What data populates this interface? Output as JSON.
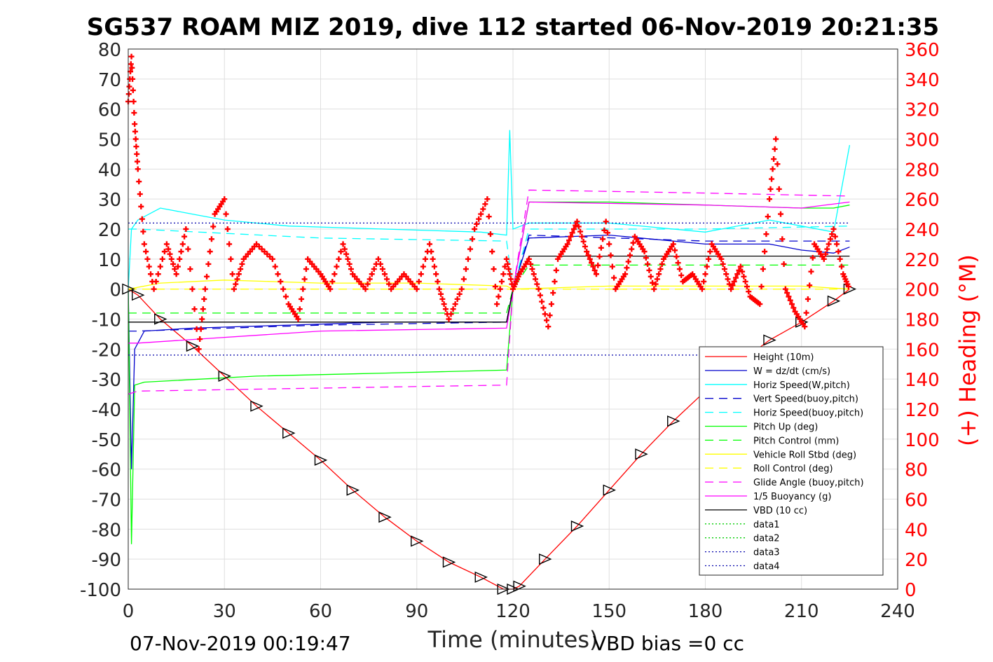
{
  "chart_data": {
    "type": "line",
    "title": "SG537 ROAM MIZ 2019, dive 112 started 06-Nov-2019 20:21:35",
    "xlabel": "Time (minutes)",
    "ylabel_right": "(+) Heading (°M)",
    "footer_left": "07-Nov-2019 00:19:47",
    "footer_right": "VBD bias =0 cc",
    "xlim": [
      0,
      240
    ],
    "ylim_left": [
      -100,
      80
    ],
    "ylim_right": [
      0,
      360
    ],
    "xticks": [
      "0",
      "30",
      "60",
      "90",
      "120",
      "150",
      "180",
      "210",
      "240"
    ],
    "yticks_left": [
      "80",
      "70",
      "60",
      "50",
      "40",
      "30",
      "20",
      "10",
      "0",
      "-10",
      "-20",
      "-30",
      "-40",
      "-50",
      "-60",
      "-70",
      "-80",
      "-90",
      "-100"
    ],
    "yticks_right": [
      "360",
      "340",
      "320",
      "300",
      "280",
      "260",
      "240",
      "220",
      "200",
      "180",
      "160",
      "140",
      "120",
      "100",
      "80",
      "60",
      "40",
      "20",
      "0"
    ],
    "grid": true,
    "legend_position": "lower-right",
    "colors": {
      "height": "#ff0000",
      "w": "#0000cc",
      "horiz_speed": "#00ffff",
      "pitch": "#00ff00",
      "roll": "#ffff00",
      "glide_angle": "#ff00ff",
      "buoyancy": "#ff00ff",
      "vbd": "#000000",
      "heading": "#ff0000",
      "data1": "#00cc00",
      "data2": "#00cc00",
      "data3": "#0000aa",
      "data4": "#0000aa"
    },
    "series": [
      {
        "name": "Height (10m)",
        "x": [
          0,
          3,
          10,
          20,
          30,
          40,
          50,
          60,
          70,
          80,
          90,
          100,
          110,
          117,
          120,
          122,
          130,
          140,
          150,
          160,
          170,
          180,
          190,
          200,
          210,
          220,
          225
        ],
        "y": [
          0,
          -2,
          -10,
          -19,
          -29,
          -39,
          -48,
          -57,
          -67,
          -76,
          -84,
          -91,
          -96,
          -100,
          -100,
          -99,
          -90,
          -79,
          -67,
          -55,
          -44,
          -34,
          -25,
          -17,
          -11,
          -4,
          0
        ]
      },
      {
        "name": "W = dz/dt (cm/s)",
        "x": [
          0,
          1,
          2,
          5,
          20,
          50,
          80,
          110,
          118,
          120,
          125,
          150,
          180,
          200,
          210,
          220,
          225
        ],
        "y": [
          0,
          -60,
          -20,
          -14,
          -13,
          -12,
          -11,
          -11,
          -11,
          0,
          17,
          18,
          15,
          15,
          13,
          12,
          14
        ]
      },
      {
        "name": "Horiz Speed(W,pitch)",
        "x": [
          0,
          1,
          3,
          10,
          20,
          30,
          50,
          80,
          110,
          118,
          119,
          120,
          125,
          150,
          180,
          200,
          210,
          220,
          225
        ],
        "y": [
          0,
          20,
          23,
          27,
          25,
          23,
          21,
          20,
          19,
          18,
          53,
          20,
          22,
          22,
          19,
          23,
          21,
          19,
          48
        ]
      },
      {
        "name": "Vert Speed(buoy,pitch)",
        "x": [
          0,
          3,
          60,
          118,
          120,
          125,
          180,
          225
        ],
        "y": [
          -14,
          -14,
          -12,
          -11,
          0,
          18,
          16,
          16
        ]
      },
      {
        "name": "Horiz Speed(buoy,pitch)",
        "x": [
          0,
          3,
          60,
          118,
          120,
          125,
          180,
          225
        ],
        "y": [
          20,
          20,
          17,
          16,
          0,
          20,
          20,
          21
        ]
      },
      {
        "name": "Pitch Up (deg)",
        "x": [
          0,
          1,
          2,
          5,
          40,
          80,
          118,
          120,
          125,
          150,
          180,
          210,
          220,
          225
        ],
        "y": [
          0,
          -85,
          -32,
          -31,
          -29,
          -28,
          -27,
          0,
          29,
          29,
          28,
          27,
          27,
          28
        ]
      },
      {
        "name": "Pitch Control (mm)",
        "x": [
          0,
          3,
          60,
          118,
          120,
          125,
          180,
          225
        ],
        "y": [
          -8,
          -8,
          -8,
          -8,
          0,
          8,
          8,
          8
        ]
      },
      {
        "name": "Vehicle Roll Stbd (deg)",
        "x": [
          0,
          10,
          30,
          60,
          90,
          118,
          120,
          150,
          180,
          210,
          225
        ],
        "y": [
          0,
          2,
          3,
          2,
          2,
          1,
          0,
          1,
          1,
          1,
          0
        ]
      },
      {
        "name": "Roll Control (deg)",
        "x": [
          0,
          225
        ],
        "y": [
          0,
          0
        ]
      },
      {
        "name": "Glide Angle (buoy,pitch)",
        "x": [
          0,
          3,
          60,
          118,
          120,
          125,
          180,
          225
        ],
        "y": [
          -35,
          -34,
          -33,
          -32,
          0,
          33,
          32,
          31
        ]
      },
      {
        "name": "1/5 Buoyancy (g)",
        "x": [
          0,
          3,
          60,
          118,
          120,
          125,
          180,
          210,
          225
        ],
        "y": [
          -18,
          -18,
          -14,
          -13,
          0,
          29,
          28,
          27,
          29
        ]
      },
      {
        "name": "VBD (10 cc)",
        "x": [
          0,
          3,
          60,
          118,
          120,
          125,
          180,
          225
        ],
        "y": [
          -11,
          -11,
          -11,
          -11,
          0,
          11,
          11,
          11
        ]
      },
      {
        "name": "data1",
        "x": [],
        "y": []
      },
      {
        "name": "data2",
        "x": [],
        "y": []
      },
      {
        "name": "data3",
        "x": [
          0,
          225
        ],
        "y": [
          22,
          22
        ]
      },
      {
        "name": "data4",
        "x": [
          0,
          225
        ],
        "y": [
          -22,
          -22
        ]
      }
    ],
    "heading": {
      "x": [
        0,
        1,
        2,
        3,
        5,
        8,
        12,
        15,
        18,
        22,
        24,
        27,
        30,
        33,
        36,
        40,
        45,
        50,
        53,
        56,
        60,
        63,
        67,
        70,
        74,
        78,
        82,
        86,
        90,
        94,
        97,
        100,
        104,
        108,
        112,
        115,
        118,
        120,
        122,
        125,
        128,
        131,
        134,
        137,
        140,
        143,
        146,
        149,
        152,
        155,
        158,
        161,
        164,
        167,
        170,
        173,
        176,
        179,
        182,
        185,
        188,
        191,
        194,
        197,
        200,
        202,
        205,
        208,
        211,
        214,
        217,
        220,
        223,
        225
      ],
      "y": [
        325,
        355,
        310,
        280,
        230,
        200,
        230,
        210,
        240,
        160,
        200,
        250,
        260,
        200,
        220,
        230,
        220,
        190,
        180,
        220,
        210,
        200,
        230,
        210,
        200,
        220,
        200,
        210,
        200,
        230,
        200,
        180,
        200,
        240,
        260,
        190,
        220,
        200,
        210,
        220,
        200,
        175,
        220,
        230,
        245,
        225,
        210,
        245,
        200,
        210,
        235,
        225,
        200,
        220,
        230,
        205,
        210,
        200,
        230,
        220,
        200,
        215,
        195,
        190,
        260,
        300,
        200,
        185,
        175,
        230,
        220,
        240,
        210,
        200
      ]
    }
  }
}
